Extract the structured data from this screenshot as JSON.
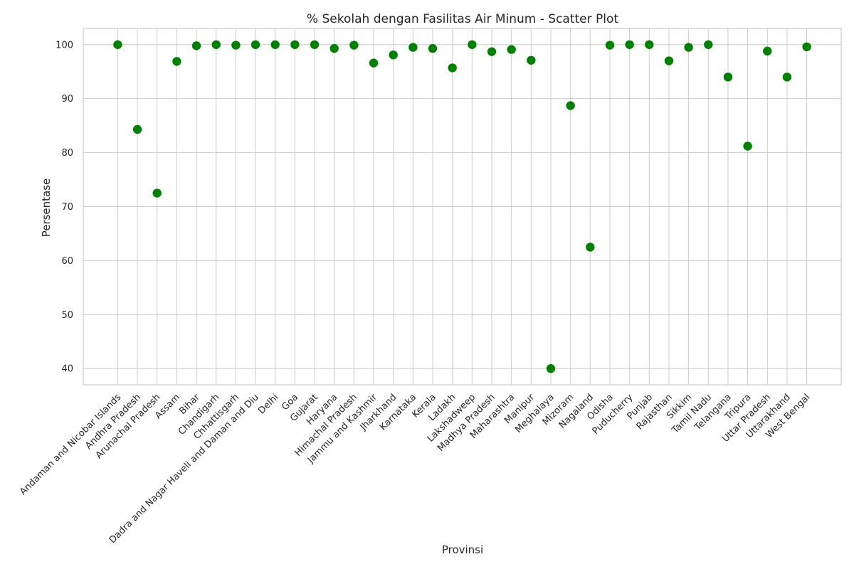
{
  "chart_data": {
    "type": "scatter",
    "title": "% Sekolah dengan Fasilitas Air Minum - Scatter Plot",
    "xlabel": "Provinsi",
    "ylabel": "Persentase",
    "ylim": [
      37,
      103
    ],
    "yticks": [
      40,
      50,
      60,
      70,
      80,
      90,
      100
    ],
    "grid": true,
    "marker_color": "#008000",
    "categories": [
      "Andaman and Nicobar Islands",
      "Andhra Pradesh",
      "Arunachal Pradesh",
      "Assam",
      "Bihar",
      "Chandigarh",
      "Chhattisgarh",
      "Dadra and Nagar Haveli and Daman and Diu",
      "Delhi",
      "Goa",
      "Gujarat",
      "Haryana",
      "Himachal Pradesh",
      "Jammu and Kashmir",
      "Jharkhand",
      "Karnataka",
      "Kerala",
      "Ladakh",
      "Lakshadweep",
      "Madhya Pradesh",
      "Maharashtra",
      "Manipur",
      "Meghalaya",
      "Mizoram",
      "Nagaland",
      "Odisha",
      "Puducherry",
      "Punjab",
      "Rajasthan",
      "Sikkim",
      "Tamil Nadu",
      "Telangana",
      "Tripura",
      "Uttar Pradesh",
      "Uttarakhand",
      "West Bengal"
    ],
    "values": [
      100,
      84.3,
      72.5,
      96.9,
      99.8,
      100,
      99.9,
      100,
      100,
      100,
      100,
      99.3,
      99.9,
      96.6,
      98.1,
      99.5,
      99.3,
      95.7,
      100,
      98.7,
      99.1,
      97.1,
      40,
      88.7,
      62.5,
      99.9,
      100,
      100,
      97.0,
      99.5,
      100,
      94.0,
      81.2,
      98.8,
      94.0,
      99.6
    ]
  }
}
